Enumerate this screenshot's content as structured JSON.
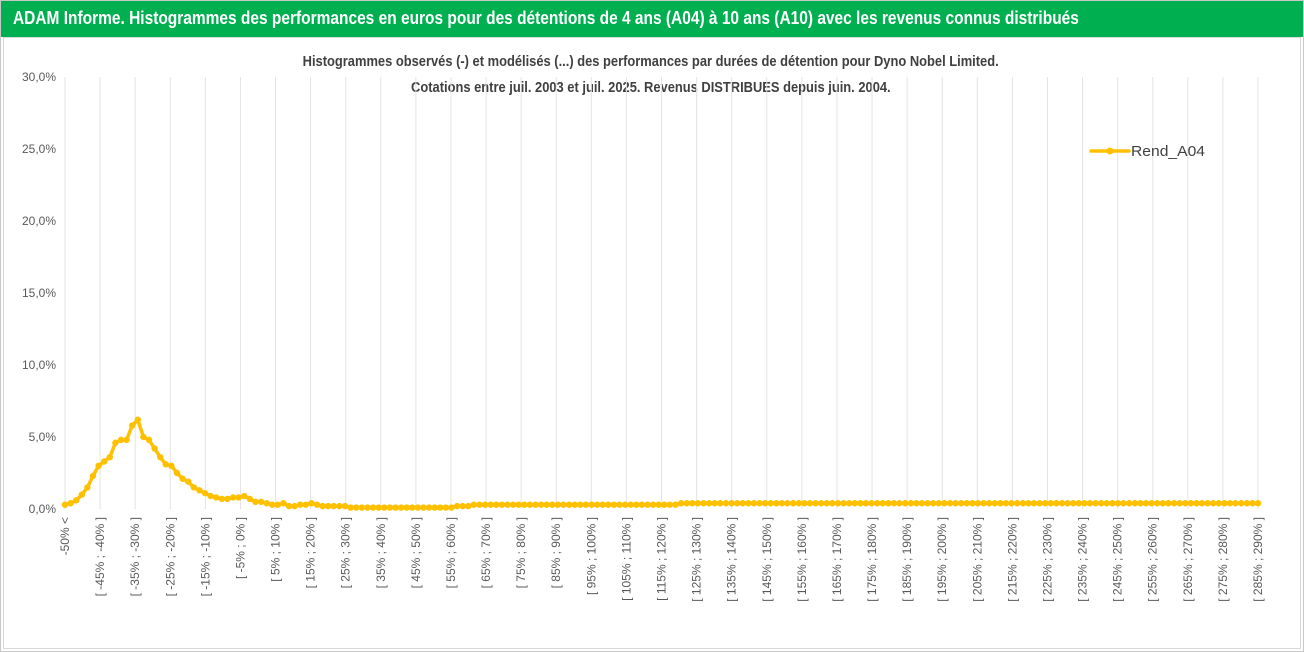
{
  "page": {
    "title": "ADAM Informe. Histogrammes des performances en euros pour des détentions de 4 ans (A04) à 10 ans (A10) avec les revenus connus distribués"
  },
  "chart_data": {
    "type": "line",
    "title": "Histogrammes observés (-)  et modélisés (...) des performances par durées de détention pour Dyno Nobel Limited.",
    "subtitle": "Cotations entre juil. 2003 et juil. 2025. Revenus DISTRIBUES depuis juin. 2004.",
    "xlabel": "",
    "ylabel": "",
    "ylim": [
      0,
      30
    ],
    "y_ticks": [
      "0,0%",
      "5,0%",
      "10,0%",
      "15,0%",
      "20,0%",
      "25,0%",
      "30,0%"
    ],
    "grid": "vertical",
    "legend_position": "right",
    "x_tick_labels": [
      "-50% <",
      "[ -45% ; -40% ]",
      "[ -35% ; -30% ]",
      "[ -25% ; -20% ]",
      "[ -15% ; -10% ]",
      "[ -5% ; 0% ]",
      "[ 5% ; 10% ]",
      "[ 15% ; 20% ]",
      "[ 25% ; 30% ]",
      "[ 35% ; 40% ]",
      "[ 45% ; 50% ]",
      "[ 55% ; 60% ]",
      "[ 65% ; 70% ]",
      "[ 75% ; 80% ]",
      "[ 85% ; 90% ]",
      "[ 95% ; 100% ]",
      "[ 105% ; 110% ]",
      "[ 115% ; 120% ]",
      "[ 125% ; 130% ]",
      "[ 135% ; 140% ]",
      "[ 145% ; 150% ]",
      "[ 155% ; 160% ]",
      "[ 165% ; 170% ]",
      "[ 175% ; 180% ]",
      "[ 185% ; 190% ]",
      "[ 195% ; 200% ]",
      "[ 205% ; 210% ]",
      "[ 215% ; 220% ]",
      "[ 225% ; 230% ]",
      "[ 235% ; 240% ]",
      "[ 245% ; 250% ]",
      "[ 255% ; 260% ]",
      "[ 265% ; 270% ]",
      "[ 275% ; 280% ]",
      "[ 285% ; 290% ]"
    ],
    "series": [
      {
        "name": "Rend_A04",
        "style": "solid",
        "color": "#ffc000",
        "values": [
          0.3,
          0.4,
          0.6,
          1.0,
          1.5,
          2.3,
          3.0,
          3.3,
          3.6,
          4.6,
          4.8,
          4.8,
          5.8,
          6.2,
          5.0,
          4.8,
          4.2,
          3.6,
          3.1,
          3.0,
          2.5,
          2.1,
          1.9,
          1.5,
          1.3,
          1.1,
          0.9,
          0.8,
          0.7,
          0.7,
          0.8,
          0.8,
          0.9,
          0.7,
          0.5,
          0.5,
          0.4,
          0.3,
          0.3,
          0.4,
          0.2,
          0.2,
          0.3,
          0.3,
          0.4,
          0.3,
          0.2,
          0.2,
          0.2,
          0.2,
          0.2,
          0.1,
          0.1,
          0.1,
          0.1,
          0.1,
          0.1,
          0.1,
          0.1,
          0.1,
          0.1,
          0.1,
          0.1,
          0.1,
          0.1,
          0.1,
          0.1,
          0.1,
          0.1,
          0.1,
          0.2,
          0.2,
          0.2,
          0.3,
          0.3,
          0.3,
          0.3,
          0.3,
          0.3,
          0.3,
          0.3,
          0.3,
          0.3,
          0.3,
          0.3,
          0.3,
          0.3,
          0.3,
          0.3,
          0.3,
          0.3,
          0.3,
          0.3,
          0.3,
          0.3,
          0.3,
          0.3,
          0.3,
          0.3,
          0.3,
          0.3,
          0.3,
          0.3,
          0.3,
          0.3,
          0.3,
          0.3,
          0.3,
          0.3,
          0.3,
          0.4,
          0.4,
          0.4,
          0.4,
          0.4,
          0.4,
          0.4,
          0.4,
          0.4,
          0.4,
          0.4,
          0.4,
          0.4,
          0.4,
          0.4,
          0.4,
          0.4,
          0.4,
          0.4,
          0.4,
          0.4,
          0.4,
          0.4,
          0.4,
          0.4,
          0.4,
          0.4,
          0.4,
          0.4,
          0.4,
          0.4,
          0.4,
          0.4,
          0.4,
          0.4,
          0.4,
          0.4,
          0.4,
          0.4,
          0.4,
          0.4,
          0.4,
          0.4,
          0.4,
          0.4,
          0.4,
          0.4,
          0.4,
          0.4,
          0.4,
          0.4,
          0.4,
          0.4,
          0.4,
          0.4,
          0.4,
          0.4,
          0.4,
          0.4,
          0.4,
          0.4,
          0.4,
          0.4,
          0.4,
          0.4,
          0.4,
          0.4,
          0.4,
          0.4,
          0.4,
          0.4,
          0.4,
          0.4,
          0.4,
          0.4,
          0.4,
          0.4,
          0.4,
          0.4,
          0.4,
          0.4,
          0.4,
          0.4,
          0.4,
          0.4,
          0.4,
          0.4,
          0.4,
          0.4,
          0.4,
          0.4,
          0.4,
          0.4,
          0.4,
          0.4,
          0.4,
          0.4,
          0.4,
          0.4,
          0.4,
          0.4,
          0.4,
          0.4,
          0.4
        ]
      }
    ]
  }
}
